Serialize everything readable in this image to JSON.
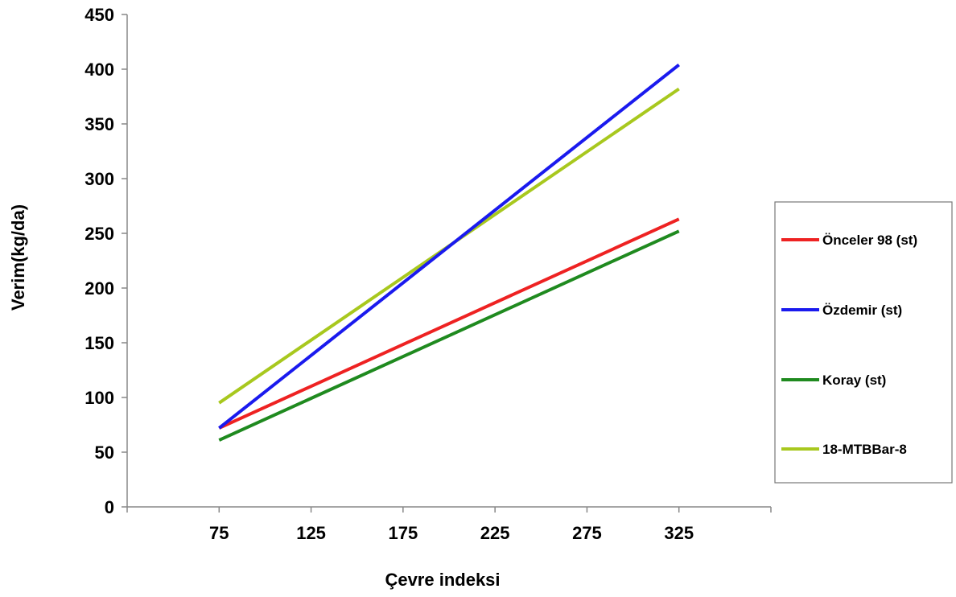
{
  "chart_data": {
    "type": "line",
    "xlabel": "Çevre indeksi",
    "ylabel": "Verim(kg/da)",
    "xlim": [
      25,
      375
    ],
    "ylim": [
      0,
      450
    ],
    "x_ticks": [
      75,
      125,
      175,
      225,
      275,
      325
    ],
    "y_ticks": [
      0,
      50,
      100,
      150,
      200,
      250,
      300,
      350,
      400,
      450
    ],
    "grid": false,
    "legend_position": "right",
    "series": [
      {
        "name": "Önceler 98 (st)",
        "color": "#ee2222",
        "x": [
          75,
          325
        ],
        "y": [
          72,
          263
        ]
      },
      {
        "name": "Özdemir (st)",
        "color": "#1a1aee",
        "x": [
          75,
          325
        ],
        "y": [
          72,
          404
        ]
      },
      {
        "name": "Koray (st)",
        "color": "#1f8a1f",
        "x": [
          75,
          325
        ],
        "y": [
          61,
          252
        ]
      },
      {
        "name": "18-MTBBar-8",
        "color": "#a8c81e",
        "x": [
          75,
          325
        ],
        "y": [
          95,
          382
        ]
      }
    ]
  }
}
